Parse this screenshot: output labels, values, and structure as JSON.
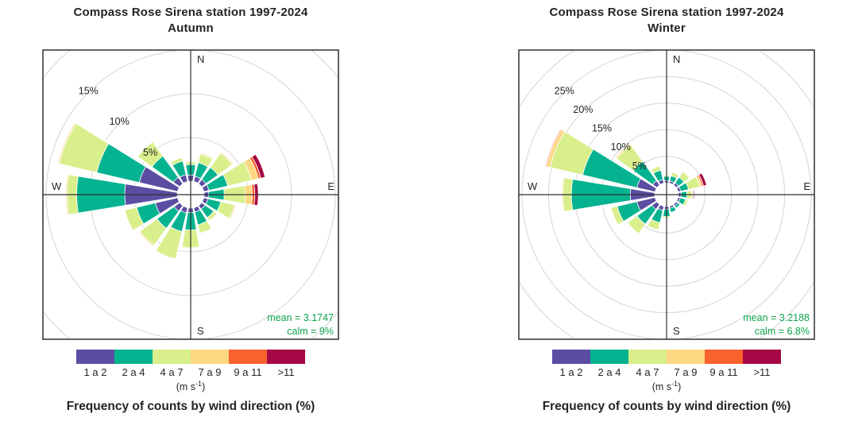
{
  "caption": "Frequency of counts by wind direction (%)",
  "colors": {
    "grid": "#d4d4d4",
    "axis": "#2f2f2f",
    "box_border": "#2f2f2f",
    "annotation_green": "#0ca44a",
    "label_text": "#242424"
  },
  "legend": {
    "unit_prefix": "(m s",
    "unit_sup": "-1",
    "unit_suffix": ")",
    "bins": [
      {
        "label": "1 a 2",
        "color": "#5b4ea2"
      },
      {
        "label": "2 a 4",
        "color": "#05b390"
      },
      {
        "label": "4 a 7",
        "color": "#d9ef8b"
      },
      {
        "label": "7 a 9",
        "color": "#fdd781"
      },
      {
        "label": "9 a 11",
        "color": "#f9612d"
      },
      {
        "label": ">11",
        "color": "#a50845"
      }
    ]
  },
  "compass": {
    "n": "N",
    "e": "E",
    "s": "S",
    "w": "W"
  },
  "chart_data": [
    {
      "type": "wind-rose",
      "title": "Compass Rose Sirena station 1997-2024",
      "subtitle": "Autumn",
      "mean_text": "mean = 3.1747",
      "calm_text": "calm = 9%",
      "mean_value": 3.1747,
      "calm_pct": 9,
      "rings_pct": [
        5,
        10,
        15,
        20
      ],
      "labeled_rings_pct": [
        5,
        10,
        15
      ],
      "ring_label_suffix": "%",
      "categories": [
        "N",
        "NNE",
        "NE",
        "ENE",
        "E",
        "ESE",
        "SE",
        "SSE",
        "S",
        "SSW",
        "SW",
        "WSW",
        "W",
        "WNW",
        "NW",
        "NNW"
      ],
      "series": [
        {
          "name": "1 a 2",
          "values": [
            0.7,
            0.6,
            0.6,
            0.6,
            0.5,
            0.5,
            0.5,
            0.5,
            0.5,
            0.6,
            0.8,
            2.6,
            6.0,
            4.5,
            0.9,
            0.8
          ]
        },
        {
          "name": "2 a 4",
          "values": [
            1.2,
            1.6,
            1.7,
            2.2,
            1.8,
            1.5,
            1.2,
            1.5,
            2.0,
            2.2,
            2.4,
            2.2,
            5.5,
            5.0,
            3.0,
            1.6
          ]
        },
        {
          "name": "4 a 7",
          "values": [
            0.3,
            1.0,
            2.0,
            2.8,
            2.4,
            1.6,
            0.45,
            0.95,
            2.0,
            3.2,
            2.4,
            1.4,
            1.1,
            4.4,
            2.0,
            0.4
          ]
        },
        {
          "name": "7 a 9",
          "values": [
            0.1,
            0.15,
            0.15,
            0.8,
            0.8,
            0.15,
            0.05,
            0.1,
            0.1,
            0.1,
            0.15,
            0,
            0.15,
            0.15,
            0,
            0
          ]
        },
        {
          "name": "9 a 11",
          "values": [
            0,
            0.05,
            0.05,
            0.3,
            0.3,
            0.05,
            0,
            0.05,
            0.05,
            0.05,
            0.05,
            0,
            0.05,
            0.05,
            0,
            0
          ]
        },
        {
          "name": ">11",
          "values": [
            0,
            0,
            0,
            0.5,
            0.4,
            0,
            0,
            0,
            0.05,
            0.05,
            0,
            0,
            0,
            0,
            0,
            0
          ]
        }
      ]
    },
    {
      "type": "wind-rose",
      "title": "Compass Rose Sirena station 1997-2024",
      "subtitle": "Winter",
      "mean_text": "mean = 3.2188",
      "calm_text": "calm = 6.8%",
      "mean_value": 3.2188,
      "calm_pct": 6.8,
      "rings_pct": [
        5,
        10,
        15,
        20,
        25,
        30
      ],
      "labeled_rings_pct": [
        5,
        10,
        15,
        20,
        25
      ],
      "ring_label_suffix": "%",
      "categories": [
        "N",
        "NNE",
        "NE",
        "ENE",
        "E",
        "ESE",
        "SE",
        "SSE",
        "S",
        "SSW",
        "SW",
        "WSW",
        "W",
        "WNW",
        "NW",
        "NNW"
      ],
      "series": [
        {
          "name": "1 a 2",
          "values": [
            0.4,
            0.4,
            0.5,
            0.5,
            0.5,
            0.4,
            0.4,
            0.4,
            0.5,
            0.8,
            1.2,
            3.5,
            4.6,
            3.5,
            1.0,
            0.7
          ]
        },
        {
          "name": "2 a 4",
          "values": [
            0.8,
            1.0,
            1.3,
            1.5,
            1.1,
            1.0,
            0.5,
            0.8,
            1.4,
            2.4,
            3.4,
            3.8,
            11.1,
            10.5,
            4.5,
            1.8
          ]
        },
        {
          "name": "4 a 7",
          "values": [
            0.2,
            0.7,
            1.2,
            2.2,
            0.9,
            0.5,
            0.1,
            0.1,
            0.3,
            1.4,
            2.2,
            1.2,
            1.6,
            6.3,
            3.8,
            0.8
          ]
        },
        {
          "name": "7 a 9",
          "values": [
            0,
            0.1,
            0.2,
            0.4,
            0.2,
            0.05,
            0,
            0,
            0,
            0.1,
            0.1,
            0,
            0.2,
            0.7,
            0.3,
            0
          ]
        },
        {
          "name": "9 a 11",
          "values": [
            0,
            0.1,
            0.1,
            0.3,
            0.1,
            0.05,
            0,
            0,
            0,
            0,
            0,
            0,
            0.1,
            0.2,
            0.1,
            0
          ]
        },
        {
          "name": ">11",
          "values": [
            0,
            0,
            0,
            0.6,
            0.2,
            0,
            0,
            0,
            0,
            0,
            0,
            0,
            0,
            0.1,
            0,
            0
          ]
        }
      ]
    }
  ]
}
